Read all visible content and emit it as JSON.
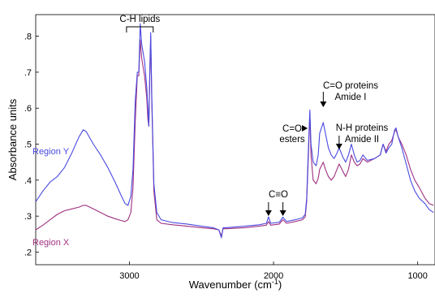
{
  "chart_data": {
    "type": "line",
    "title": "",
    "xlabel": "Wavenumber (cm",
    "xlabel_sup": "-1",
    "xlabel_tail": ")",
    "ylabel": "Absorbance units",
    "xlim": [
      3650,
      880
    ],
    "ylim": [
      0.165,
      0.86
    ],
    "x_reversed": true,
    "grid": false,
    "xticks": [
      {
        "value": 3000,
        "label": "3000"
      },
      {
        "value": 2000,
        "label": "2000"
      },
      {
        "value": 1000,
        "label": "1000"
      }
    ],
    "yticks": [
      {
        "value": 0.2,
        "label": ".2"
      },
      {
        "value": 0.3,
        "label": ".3"
      },
      {
        "value": 0.4,
        "label": ".4"
      },
      {
        "value": 0.5,
        "label": ".5"
      },
      {
        "value": 0.6,
        "label": ".6"
      },
      {
        "value": 0.7,
        "label": ".7"
      },
      {
        "value": 0.8,
        "label": ".8"
      }
    ],
    "series": [
      {
        "name": "Region Y",
        "color": "#4a4ae0",
        "points": [
          [
            3650,
            0.34
          ],
          [
            3600,
            0.37
          ],
          [
            3550,
            0.395
          ],
          [
            3500,
            0.41
          ],
          [
            3450,
            0.435
          ],
          [
            3400,
            0.475
          ],
          [
            3350,
            0.52
          ],
          [
            3320,
            0.54
          ],
          [
            3300,
            0.535
          ],
          [
            3250,
            0.5
          ],
          [
            3200,
            0.47
          ],
          [
            3150,
            0.435
          ],
          [
            3100,
            0.395
          ],
          [
            3060,
            0.36
          ],
          [
            3030,
            0.335
          ],
          [
            3010,
            0.33
          ],
          [
            2990,
            0.355
          ],
          [
            2975,
            0.43
          ],
          [
            2960,
            0.62
          ],
          [
            2945,
            0.7
          ],
          [
            2935,
            0.7
          ],
          [
            2925,
            0.835
          ],
          [
            2915,
            0.78
          ],
          [
            2895,
            0.73
          ],
          [
            2880,
            0.66
          ],
          [
            2872,
            0.6
          ],
          [
            2865,
            0.55
          ],
          [
            2858,
            0.72
          ],
          [
            2852,
            0.81
          ],
          [
            2845,
            0.64
          ],
          [
            2830,
            0.39
          ],
          [
            2810,
            0.31
          ],
          [
            2780,
            0.29
          ],
          [
            2700,
            0.282
          ],
          [
            2600,
            0.278
          ],
          [
            2500,
            0.272
          ],
          [
            2420,
            0.268
          ],
          [
            2380,
            0.262
          ],
          [
            2362,
            0.24
          ],
          [
            2350,
            0.268
          ],
          [
            2330,
            0.268
          ],
          [
            2200,
            0.272
          ],
          [
            2100,
            0.276
          ],
          [
            2050,
            0.28
          ],
          [
            2035,
            0.298
          ],
          [
            2020,
            0.28
          ],
          [
            1960,
            0.283
          ],
          [
            1935,
            0.297
          ],
          [
            1910,
            0.285
          ],
          [
            1850,
            0.29
          ],
          [
            1800,
            0.295
          ],
          [
            1780,
            0.305
          ],
          [
            1770,
            0.35
          ],
          [
            1760,
            0.47
          ],
          [
            1748,
            0.595
          ],
          [
            1740,
            0.5
          ],
          [
            1725,
            0.45
          ],
          [
            1705,
            0.44
          ],
          [
            1690,
            0.47
          ],
          [
            1680,
            0.53
          ],
          [
            1655,
            0.56
          ],
          [
            1640,
            0.53
          ],
          [
            1620,
            0.49
          ],
          [
            1600,
            0.47
          ],
          [
            1580,
            0.46
          ],
          [
            1560,
            0.475
          ],
          [
            1545,
            0.49
          ],
          [
            1520,
            0.465
          ],
          [
            1500,
            0.45
          ],
          [
            1480,
            0.47
          ],
          [
            1460,
            0.5
          ],
          [
            1440,
            0.47
          ],
          [
            1420,
            0.45
          ],
          [
            1400,
            0.455
          ],
          [
            1380,
            0.47
          ],
          [
            1350,
            0.455
          ],
          [
            1300,
            0.46
          ],
          [
            1260,
            0.47
          ],
          [
            1240,
            0.5
          ],
          [
            1220,
            0.475
          ],
          [
            1200,
            0.49
          ],
          [
            1180,
            0.5
          ],
          [
            1160,
            0.54
          ],
          [
            1150,
            0.545
          ],
          [
            1135,
            0.52
          ],
          [
            1110,
            0.49
          ],
          [
            1080,
            0.445
          ],
          [
            1050,
            0.4
          ],
          [
            1020,
            0.37
          ],
          [
            990,
            0.35
          ],
          [
            950,
            0.335
          ],
          [
            920,
            0.318
          ],
          [
            890,
            0.31
          ]
        ]
      },
      {
        "name": "Region X",
        "color": "#a03080",
        "points": [
          [
            3650,
            0.262
          ],
          [
            3600,
            0.275
          ],
          [
            3550,
            0.29
          ],
          [
            3500,
            0.305
          ],
          [
            3450,
            0.315
          ],
          [
            3400,
            0.32
          ],
          [
            3350,
            0.325
          ],
          [
            3320,
            0.33
          ],
          [
            3300,
            0.33
          ],
          [
            3250,
            0.32
          ],
          [
            3200,
            0.31
          ],
          [
            3150,
            0.3
          ],
          [
            3100,
            0.293
          ],
          [
            3060,
            0.288
          ],
          [
            3030,
            0.285
          ],
          [
            3010,
            0.29
          ],
          [
            2990,
            0.31
          ],
          [
            2975,
            0.38
          ],
          [
            2960,
            0.56
          ],
          [
            2945,
            0.69
          ],
          [
            2935,
            0.69
          ],
          [
            2925,
            0.79
          ],
          [
            2915,
            0.74
          ],
          [
            2895,
            0.69
          ],
          [
            2880,
            0.63
          ],
          [
            2872,
            0.57
          ],
          [
            2865,
            0.55
          ],
          [
            2858,
            0.7
          ],
          [
            2852,
            0.8
          ],
          [
            2845,
            0.62
          ],
          [
            2830,
            0.37
          ],
          [
            2810,
            0.29
          ],
          [
            2780,
            0.28
          ],
          [
            2700,
            0.276
          ],
          [
            2600,
            0.272
          ],
          [
            2500,
            0.268
          ],
          [
            2420,
            0.265
          ],
          [
            2380,
            0.262
          ],
          [
            2362,
            0.245
          ],
          [
            2350,
            0.265
          ],
          [
            2330,
            0.265
          ],
          [
            2200,
            0.268
          ],
          [
            2100,
            0.272
          ],
          [
            2050,
            0.275
          ],
          [
            2035,
            0.285
          ],
          [
            2020,
            0.275
          ],
          [
            1960,
            0.278
          ],
          [
            1935,
            0.29
          ],
          [
            1910,
            0.28
          ],
          [
            1850,
            0.285
          ],
          [
            1800,
            0.29
          ],
          [
            1780,
            0.298
          ],
          [
            1770,
            0.34
          ],
          [
            1760,
            0.45
          ],
          [
            1748,
            0.585
          ],
          [
            1740,
            0.47
          ],
          [
            1725,
            0.4
          ],
          [
            1705,
            0.39
          ],
          [
            1690,
            0.405
          ],
          [
            1680,
            0.43
          ],
          [
            1655,
            0.45
          ],
          [
            1640,
            0.43
          ],
          [
            1620,
            0.41
          ],
          [
            1600,
            0.4
          ],
          [
            1580,
            0.41
          ],
          [
            1560,
            0.43
          ],
          [
            1545,
            0.445
          ],
          [
            1520,
            0.425
          ],
          [
            1500,
            0.41
          ],
          [
            1480,
            0.43
          ],
          [
            1460,
            0.47
          ],
          [
            1440,
            0.45
          ],
          [
            1420,
            0.44
          ],
          [
            1400,
            0.445
          ],
          [
            1380,
            0.46
          ],
          [
            1350,
            0.45
          ],
          [
            1300,
            0.46
          ],
          [
            1260,
            0.47
          ],
          [
            1240,
            0.5
          ],
          [
            1220,
            0.48
          ],
          [
            1200,
            0.5
          ],
          [
            1180,
            0.51
          ],
          [
            1160,
            0.535
          ],
          [
            1150,
            0.54
          ],
          [
            1135,
            0.52
          ],
          [
            1110,
            0.5
          ],
          [
            1080,
            0.47
          ],
          [
            1050,
            0.43
          ],
          [
            1020,
            0.4
          ],
          [
            990,
            0.38
          ],
          [
            950,
            0.35
          ],
          [
            920,
            0.335
          ],
          [
            890,
            0.33
          ]
        ]
      }
    ],
    "annotations": [
      {
        "id": "ch-lipids",
        "lines": [
          "C-H lipids"
        ],
        "bracket_from": 3020,
        "bracket_to": 2835
      },
      {
        "id": "co-esters",
        "lines": [
          "C=O",
          "esters"
        ],
        "arrow_to": [
          1758,
          0.56
        ]
      },
      {
        "id": "co-proteins",
        "lines": [
          "C=O proteins",
          "Amide I"
        ],
        "arrow_to": [
          1655,
          0.57
        ]
      },
      {
        "id": "nh-proteins",
        "lines": [
          "N-H proteins",
          "Amide II"
        ],
        "arrow_to": [
          1545,
          0.5
        ]
      },
      {
        "id": "c-triple-o",
        "lines": [
          "C≡O"
        ],
        "arrows_to": [
          [
            2035,
            0.3
          ],
          [
            1935,
            0.3
          ]
        ]
      }
    ]
  }
}
